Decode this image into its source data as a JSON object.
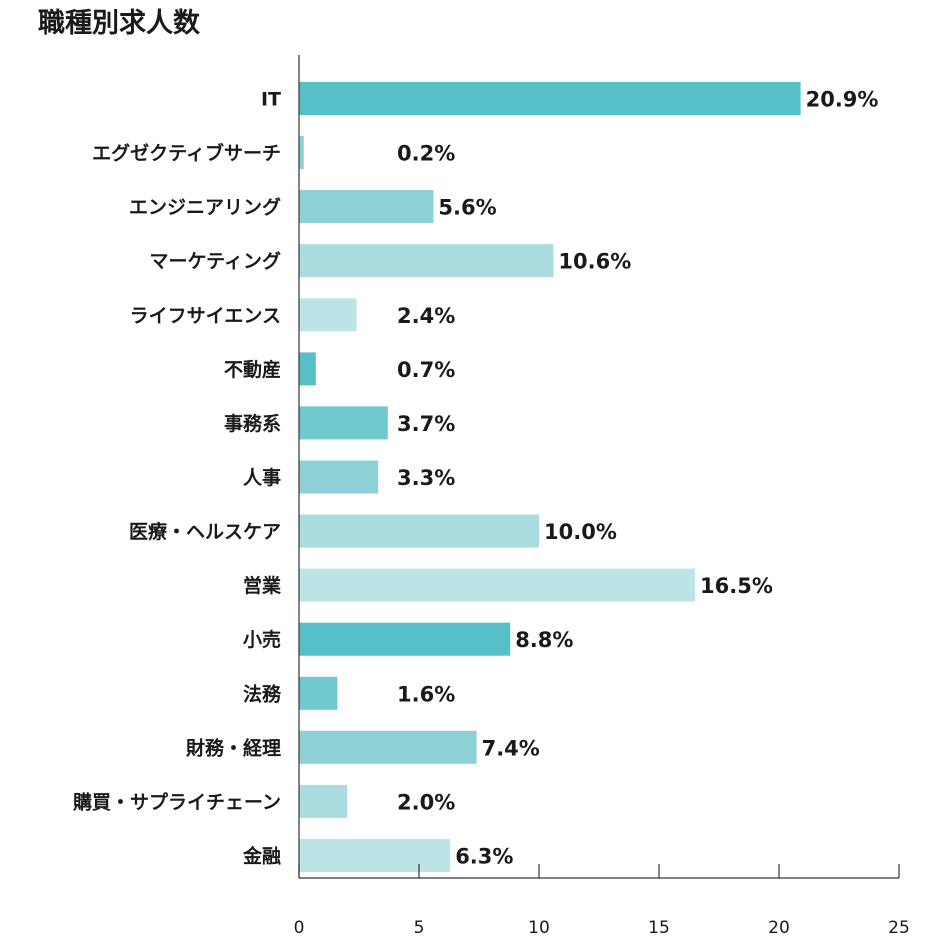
{
  "chart_data": {
    "type": "bar",
    "orientation": "horizontal",
    "title": "職種別求人数",
    "xlabel": "",
    "ylabel": "",
    "xlim": [
      0,
      25
    ],
    "xticks": [
      0,
      5,
      10,
      15,
      20,
      25
    ],
    "grid": false,
    "legend": "none",
    "value_suffix": "%",
    "categories": [
      "IT",
      "エグゼクティブサーチ",
      "エンジニアリング",
      "マーケティング",
      "ライフサイエンス",
      "不動産",
      "事務系",
      "人事",
      "医療・ヘルスケア",
      "営業",
      "小売",
      "法務",
      "財務・経理",
      "購買・サプライチェーン",
      "金融"
    ],
    "values": [
      20.9,
      0.2,
      5.6,
      10.6,
      2.4,
      0.7,
      3.7,
      3.3,
      10.0,
      16.5,
      8.8,
      1.6,
      7.4,
      2.0,
      6.3
    ],
    "value_labels": [
      "20.9%",
      "0.2%",
      "5.6%",
      "10.6%",
      "2.4%",
      "0.7%",
      "3.7%",
      "3.3%",
      "10.0%",
      "16.5%",
      "8.8%",
      "1.6%",
      "7.4%",
      "2.0%",
      "6.3%"
    ],
    "colors": [
      "#56bfc7",
      "#8dd0d6",
      "#8dd0d6",
      "#a9dbdf",
      "#bce4e6",
      "#56bfc7",
      "#71c8cf",
      "#8dd0d6",
      "#a9dbdf",
      "#bce4e6",
      "#56bfc7",
      "#71c8cf",
      "#8dd0d6",
      "#a9dbdf",
      "#bce4e6"
    ],
    "axis_color": "#333333"
  }
}
